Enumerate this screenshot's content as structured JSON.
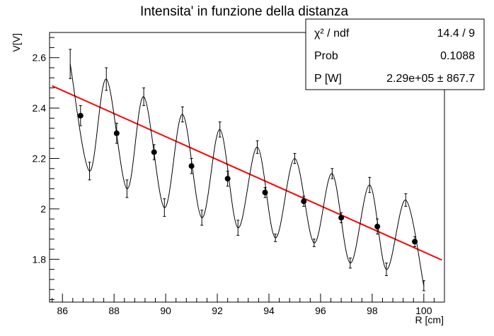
{
  "chart_data": {
    "type": "scatter",
    "title": "Intensita' in funzione della distanza",
    "xlabel": "R [cm]",
    "ylabel": "V[V]",
    "xlim": [
      85.5,
      100.8
    ],
    "ylim": [
      1.63,
      2.7
    ],
    "xticks": [
      86,
      88,
      90,
      92,
      94,
      96,
      98,
      100
    ],
    "yticks": [
      1.8,
      2.0,
      2.2,
      2.4,
      2.6
    ],
    "xtick_labels": [
      "86",
      "88",
      "90",
      "92",
      "94",
      "96",
      "98",
      "100"
    ],
    "ytick_labels": [
      "1.8",
      "2",
      "2.2",
      "2.4",
      "2.6"
    ],
    "grid": false,
    "fit_line": {
      "x": [
        85.6,
        100.7
      ],
      "y": [
        2.488,
        1.797
      ],
      "color": "#ff0000"
    },
    "series": [
      {
        "marker": "dot",
        "points": [
          {
            "x": 86.7,
            "y": 2.37,
            "err": 0.04
          },
          {
            "x": 88.1,
            "y": 2.3,
            "err": 0.04
          },
          {
            "x": 89.55,
            "y": 2.225,
            "err": 0.03
          },
          {
            "x": 91.0,
            "y": 2.17,
            "err": 0.03
          },
          {
            "x": 92.4,
            "y": 2.12,
            "err": 0.03
          },
          {
            "x": 93.85,
            "y": 2.065,
            "err": 0.02
          },
          {
            "x": 95.35,
            "y": 2.03,
            "err": 0.02
          },
          {
            "x": 96.8,
            "y": 1.965,
            "err": 0.02
          },
          {
            "x": 98.2,
            "y": 1.93,
            "err": 0.03
          },
          {
            "x": 99.65,
            "y": 1.87,
            "err": 0.02
          }
        ]
      },
      {
        "marker": "error-bar",
        "points": [
          {
            "x": 86.3,
            "y": 2.575,
            "err": 0.058
          },
          {
            "x": 87.05,
            "y": 2.15,
            "err": 0.035
          },
          {
            "x": 87.7,
            "y": 2.515,
            "err": 0.045
          },
          {
            "x": 88.5,
            "y": 2.08,
            "err": 0.035
          },
          {
            "x": 89.15,
            "y": 2.445,
            "err": 0.035
          },
          {
            "x": 89.95,
            "y": 2.005,
            "err": 0.035
          },
          {
            "x": 90.65,
            "y": 2.375,
            "err": 0.03
          },
          {
            "x": 91.4,
            "y": 1.965,
            "err": 0.03
          },
          {
            "x": 92.1,
            "y": 2.315,
            "err": 0.03
          },
          {
            "x": 92.8,
            "y": 1.925,
            "err": 0.03
          },
          {
            "x": 93.55,
            "y": 2.245,
            "err": 0.025
          },
          {
            "x": 94.25,
            "y": 1.885,
            "err": 0.015
          },
          {
            "x": 95.0,
            "y": 2.2,
            "err": 0.02
          },
          {
            "x": 95.75,
            "y": 1.865,
            "err": 0.015
          },
          {
            "x": 96.45,
            "y": 2.14,
            "err": 0.02
          },
          {
            "x": 97.15,
            "y": 1.785,
            "err": 0.02
          },
          {
            "x": 97.9,
            "y": 2.095,
            "err": 0.03
          },
          {
            "x": 98.55,
            "y": 1.76,
            "err": 0.025
          },
          {
            "x": 99.3,
            "y": 2.035,
            "err": 0.025
          },
          {
            "x": 100.0,
            "y": 1.695,
            "err": 0.02
          }
        ]
      }
    ],
    "stats_box": {
      "rows": [
        {
          "label": "χ² / ndf",
          "value": "14.4 / 9"
        },
        {
          "label": "Prob",
          "value": "0.1088"
        },
        {
          "label": "P [W]",
          "value": "2.29e+05 ± 867.7"
        }
      ]
    }
  }
}
